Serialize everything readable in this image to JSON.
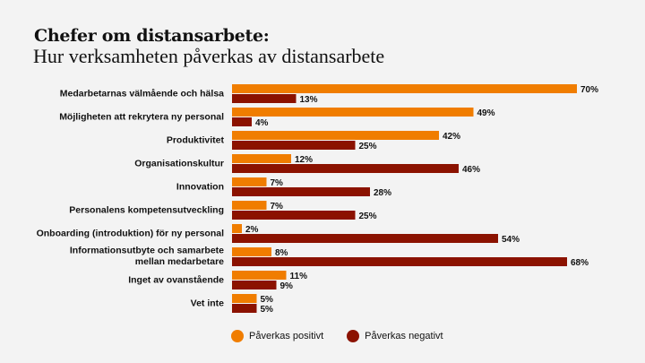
{
  "chart_data": {
    "type": "bar",
    "orientation": "horizontal",
    "title": "Chefer om distansarbete:",
    "subtitle": "Hur verksamheten påverkas av distansarbete",
    "xlabel": "",
    "ylabel": "",
    "xlim": [
      0,
      70
    ],
    "grid": false,
    "legend_position": "bottom",
    "value_suffix": "%",
    "categories": [
      [
        "Medarbetarnas välmående och hälsa"
      ],
      [
        "Möjligheten att rekrytera ny personal"
      ],
      [
        "Produktivitet"
      ],
      [
        "Organisationskultur"
      ],
      [
        "Innovation"
      ],
      [
        "Personalens kompetensutveckling"
      ],
      [
        "Onboarding (introduktion) för ny personal"
      ],
      [
        "Informationsutbyte och samarbete",
        "mellan medarbetare"
      ],
      [
        "Inget av ovanstående"
      ],
      [
        "Vet inte"
      ]
    ],
    "series": [
      {
        "name": "Påverkas positivt",
        "color": "#f07d00",
        "values": [
          70,
          49,
          42,
          12,
          7,
          7,
          2,
          8,
          11,
          5
        ]
      },
      {
        "name": "Påverkas negativt",
        "color": "#8b1200",
        "values": [
          13,
          4,
          25,
          46,
          28,
          25,
          54,
          68,
          9,
          5
        ]
      }
    ]
  }
}
